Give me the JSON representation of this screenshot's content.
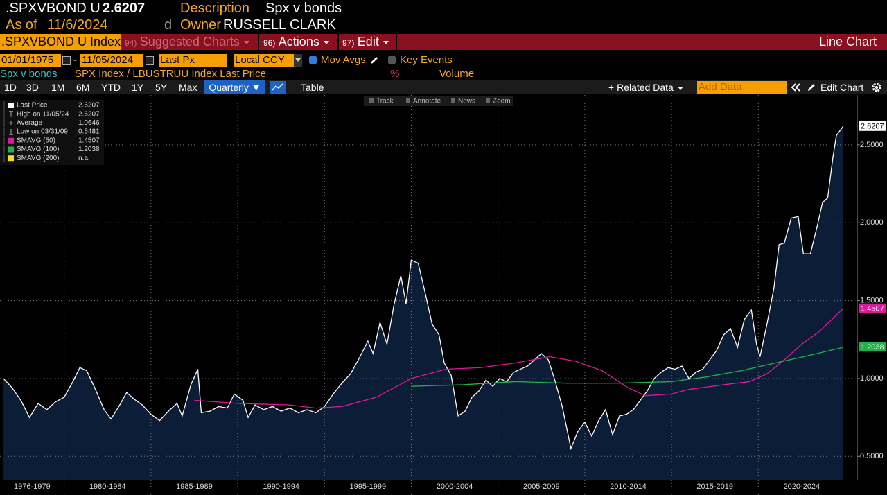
{
  "header": {
    "ticker": ".SPXVBOND U",
    "price": "2.6207",
    "description_label": "Description",
    "description": "Spx v bonds",
    "as_of_label": "As of",
    "as_of": "11/6/2024",
    "flag": "d",
    "owner_label": "Owner",
    "owner": "RUSSELL CLARK"
  },
  "menu": {
    "security": ".SPXVBOND U Index",
    "items": [
      {
        "num": "94)",
        "label": "Suggested Charts"
      },
      {
        "num": "96)",
        "label": "Actions"
      },
      {
        "num": "97)",
        "label": "Edit"
      }
    ],
    "view": "Line Chart"
  },
  "controls": {
    "start": "01/01/1975",
    "dash": "-",
    "end": "11/05/2024",
    "field": "Last Px",
    "currency": "Local CCY",
    "mov_avgs": "Mov Avgs",
    "key_events": "Key Events"
  },
  "subtitle": {
    "name": "Spx v bonds",
    "expression": "SPX Index / LBUSTRUU Index Last Price",
    "percent": "%",
    "volume": "Volume"
  },
  "toolbar": {
    "ranges": [
      "1D",
      "3D",
      "1M",
      "6M",
      "YTD",
      "1Y",
      "5Y",
      "Max"
    ],
    "frequency": "Quarterly ▼",
    "table": "Table",
    "related": "+ Related Data",
    "add_data": "Add Data",
    "edit_chart": "Edit Chart",
    "tools": [
      "Track",
      "Annotate",
      "News",
      "Zoom"
    ]
  },
  "chart_data": {
    "type": "line",
    "xlim": [
      1976.3,
      2025.7
    ],
    "ylim": [
      0.35,
      2.82
    ],
    "yticks": [
      {
        "value": 0.5,
        "label": "0.5000"
      },
      {
        "value": 1,
        "label": "1.0000"
      },
      {
        "value": 1.5,
        "label": "1.5000"
      },
      {
        "value": 2,
        "label": "2.0000"
      },
      {
        "value": 2.5,
        "label": "2.5000"
      }
    ],
    "xticks": [
      1980,
      1985,
      1990,
      1995,
      2000,
      2005,
      2010,
      2015,
      2020
    ],
    "categories": [
      "1976-1979",
      "1980-1984",
      "1985-1989",
      "1990-1994",
      "1995-1999",
      "2000-2004",
      "2005-2009",
      "2010-2014",
      "2015-2019",
      "2020-2024"
    ],
    "grid": true,
    "area_color": "#0c1d38",
    "series": [
      {
        "name": "Last Price",
        "color": "#ffffff",
        "last": 2.6207,
        "x": [
          1976.5,
          1977,
          1977.5,
          1978,
          1978.5,
          1979,
          1979.5,
          1980,
          1980.5,
          1980.9,
          1981.3,
          1981.8,
          1982.3,
          1982.7,
          1983.2,
          1983.6,
          1984,
          1984.5,
          1985,
          1985.5,
          1986,
          1986.5,
          1986.8,
          1987.3,
          1987.7,
          1987.9,
          1988.4,
          1988.9,
          1989.4,
          1989.8,
          1990.3,
          1990.6,
          1991,
          1991.5,
          1992,
          1992.5,
          1993,
          1993.5,
          1994,
          1994.5,
          1995,
          1995.5,
          1996,
          1996.5,
          1997,
          1997.5,
          1997.8,
          1998.2,
          1998.6,
          1999,
          1999.4,
          1999.7,
          2000,
          2000.4,
          2000.8,
          2001.2,
          2001.6,
          2001.9,
          2002.3,
          2002.7,
          2003.1,
          2003.5,
          2003.9,
          2004.3,
          2004.7,
          2005.1,
          2005.5,
          2005.9,
          2006.3,
          2006.7,
          2007.1,
          2007.5,
          2007.9,
          2008.3,
          2008.7,
          2009,
          2009.2,
          2009.6,
          2010,
          2010.4,
          2010.8,
          2011.2,
          2011.6,
          2012,
          2012.4,
          2012.8,
          2013.2,
          2013.6,
          2014,
          2014.4,
          2014.8,
          2015.2,
          2015.6,
          2016,
          2016.4,
          2016.8,
          2017.2,
          2017.6,
          2018,
          2018.4,
          2018.8,
          2019.2,
          2019.6,
          2019.9,
          2020.1,
          2020.5,
          2020.9,
          2021.2,
          2021.5,
          2021.9,
          2022.3,
          2022.6,
          2023,
          2023.4,
          2023.7,
          2024,
          2024.3,
          2024.5,
          2024.9
        ],
        "values": [
          1.0,
          0.94,
          0.86,
          0.75,
          0.84,
          0.8,
          0.85,
          0.88,
          0.98,
          1.07,
          1.05,
          0.93,
          0.8,
          0.74,
          0.83,
          0.91,
          0.87,
          0.83,
          0.77,
          0.73,
          0.79,
          0.84,
          0.76,
          0.96,
          1.06,
          0.78,
          0.79,
          0.82,
          0.81,
          0.9,
          0.86,
          0.75,
          0.83,
          0.8,
          0.82,
          0.79,
          0.81,
          0.78,
          0.8,
          0.78,
          0.82,
          0.9,
          0.97,
          1.03,
          1.13,
          1.24,
          1.16,
          1.36,
          1.22,
          1.47,
          1.66,
          1.48,
          1.76,
          1.74,
          1.55,
          1.35,
          1.28,
          1.1,
          1.02,
          0.76,
          0.79,
          0.88,
          0.92,
          0.99,
          0.95,
          1.0,
          0.98,
          1.04,
          1.06,
          1.08,
          1.12,
          1.16,
          1.12,
          0.98,
          0.82,
          0.66,
          0.55,
          0.66,
          0.72,
          0.63,
          0.73,
          0.8,
          0.64,
          0.76,
          0.77,
          0.8,
          0.86,
          0.92,
          1.0,
          1.04,
          1.07,
          1.06,
          1.08,
          1.0,
          1.04,
          1.06,
          1.12,
          1.18,
          1.28,
          1.32,
          1.2,
          1.38,
          1.44,
          1.22,
          1.14,
          1.35,
          1.58,
          1.86,
          1.87,
          2.03,
          2.04,
          1.8,
          1.8,
          1.98,
          2.13,
          2.16,
          2.42,
          2.56,
          2.62
        ]
      },
      {
        "name": "SMAVG (50)",
        "color": "#e0189c",
        "last": 1.4507,
        "x": [
          1987.5,
          1990,
          1993,
          1994.5,
          1996,
          1998,
          2000,
          2002,
          2004,
          2006,
          2008,
          2009.5,
          2011,
          2012.5,
          2013.5,
          2015,
          2016,
          2018,
          2019.5,
          2020.5,
          2021.5,
          2022.5,
          2023.5,
          2024.9
        ],
        "values": [
          0.86,
          0.84,
          0.83,
          0.81,
          0.82,
          0.88,
          1.0,
          1.06,
          1.07,
          1.1,
          1.14,
          1.11,
          1.05,
          0.94,
          0.89,
          0.9,
          0.93,
          0.96,
          0.98,
          1.03,
          1.12,
          1.22,
          1.3,
          1.45
        ]
      },
      {
        "name": "SMAVG (100)",
        "color": "#21b04a",
        "last": 1.2038,
        "x": [
          2000,
          2003,
          2006,
          2009,
          2012,
          2015,
          2017,
          2019,
          2021,
          2023,
          2024.9
        ],
        "values": [
          0.95,
          0.96,
          0.98,
          0.97,
          0.97,
          0.98,
          1.01,
          1.05,
          1.1,
          1.15,
          1.2
        ]
      }
    ],
    "stats": [
      {
        "name": "High on 11/05/24",
        "value": 2.6207
      },
      {
        "name": "Average",
        "value": 1.0646
      },
      {
        "name": "Low on 03/31/09",
        "value": 0.5481
      }
    ],
    "extra_legend": {
      "name": "SMAVG (200)",
      "value": "n.a.",
      "color": "#f0e020"
    }
  }
}
